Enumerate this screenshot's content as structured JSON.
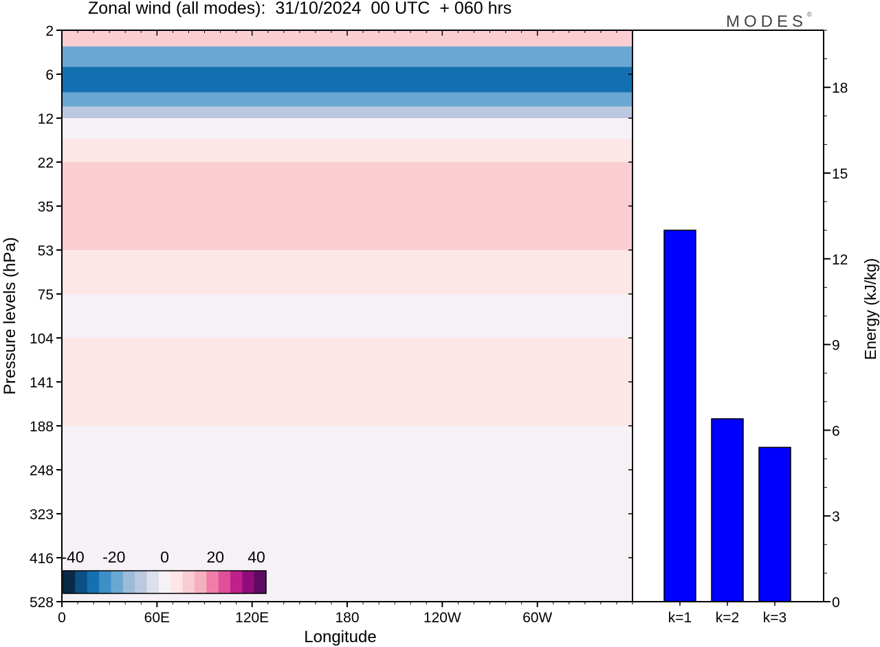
{
  "header": {
    "title": "Zonal wind (all modes):  31/10/2024  00 UTC  + 060 hrs",
    "logo": "MODES",
    "logo_mark": "©"
  },
  "chart_data": [
    {
      "type": "heatmap",
      "title": "Zonal wind (all modes):  31/10/2024  00 UTC  + 060 hrs",
      "xlabel": "Longitude",
      "ylabel": "Pressure levels (hPa)",
      "x_tick_labels": [
        "0",
        "60E",
        "120E",
        "180",
        "120W",
        "60W"
      ],
      "x_ticks_deg": [
        0,
        60,
        120,
        180,
        240,
        300
      ],
      "xlim_deg": [
        0,
        360
      ],
      "y_tick_labels": [
        "2",
        "6",
        "12",
        "22",
        "35",
        "53",
        "75",
        "104",
        "141",
        "188",
        "248",
        "323",
        "416",
        "528"
      ],
      "colorbar": {
        "labels": [
          "-40",
          "-20",
          "0",
          "20",
          "40"
        ],
        "range": [
          -40,
          40
        ],
        "step": 5,
        "colors": [
          "#0a2a4a",
          "#0d4f82",
          "#1470b0",
          "#3d8fc6",
          "#6aa7d2",
          "#9bbbd9",
          "#bcc8e0",
          "#dcdfec",
          "#f6f1f7",
          "#fde6e6",
          "#f9cdd2",
          "#f5b0c0",
          "#ef7fa8",
          "#e0509a",
          "#c0208c",
          "#900c7a",
          "#5e0a63"
        ]
      },
      "bands": [
        {
          "p_top": 2,
          "p_bot": 3,
          "u": 8
        },
        {
          "p_top": 3,
          "p_bot": 5,
          "u": -22
        },
        {
          "p_top": 5,
          "p_bot": 8,
          "u": -30
        },
        {
          "p_top": 8,
          "p_bot": 10,
          "u": -18
        },
        {
          "p_top": 10,
          "p_bot": 12,
          "u": -8
        },
        {
          "p_top": 12,
          "p_bot": 16,
          "u": 0
        },
        {
          "p_top": 16,
          "p_bot": 22,
          "u": 6
        },
        {
          "p_top": 22,
          "p_bot": 35,
          "u": 10
        },
        {
          "p_top": 35,
          "p_bot": 53,
          "u": 8
        },
        {
          "p_top": 53,
          "p_bot": 75,
          "u": 6
        },
        {
          "p_top": 75,
          "p_bot": 104,
          "u": 2
        },
        {
          "p_top": 104,
          "p_bot": 188,
          "u": 3
        },
        {
          "p_top": 188,
          "p_bot": 323,
          "u": 1
        },
        {
          "p_top": 323,
          "p_bot": 528,
          "u": 0
        }
      ]
    },
    {
      "type": "bar",
      "ylabel": "Energy (kJ/kg)",
      "categories": [
        "k=1",
        "k=2",
        "k=3"
      ],
      "values": [
        13.0,
        6.4,
        5.4
      ],
      "ylim": [
        0,
        20
      ],
      "y_tick_labels": [
        "0",
        "3",
        "6",
        "9",
        "12",
        "15",
        "18"
      ],
      "bar_color": "#0000ff"
    }
  ]
}
